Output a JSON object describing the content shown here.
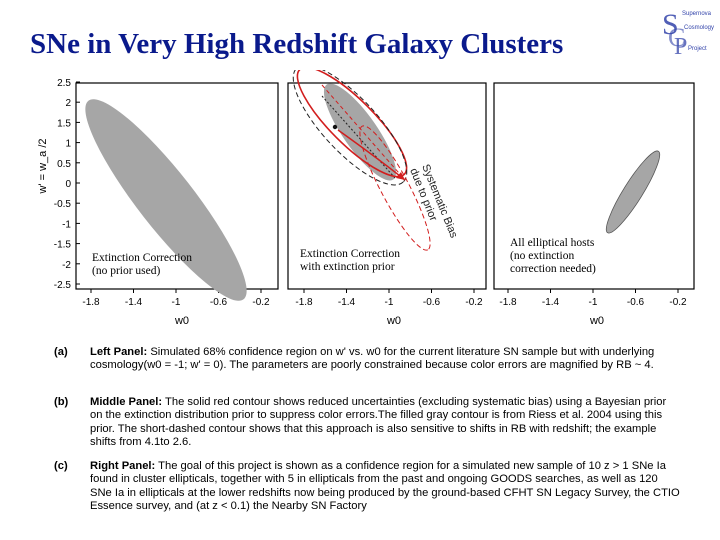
{
  "title": "SNe in Very High Redshift Galaxy Clusters",
  "logo": {
    "letters": "SCP",
    "text_lines": [
      "Supernova",
      "Cosmology",
      "Project"
    ]
  },
  "colors": {
    "title": "#0a1a8c",
    "contour_gray": "#a6a6a6",
    "red": "#d21e1e",
    "logo_blue": "#3344aa"
  },
  "figure": {
    "ylabel": "w' = w_a /2",
    "yticks": [
      "2.5",
      "2",
      "1.5",
      "1",
      "0.5",
      "0",
      "-0.5",
      "-1",
      "-1.5",
      "-2",
      "-2.5"
    ],
    "xticks": [
      "-1.8",
      "-1.4",
      "-1",
      "-0.6",
      "-0.2"
    ],
    "xlabel": "w0",
    "panels": [
      {
        "label_lines": [
          "Extinction Correction",
          "(no prior used)"
        ]
      },
      {
        "label_lines": [
          "Extinction Correction",
          "with extinction prior"
        ],
        "annotation_lines": [
          "Systematic Bias",
          "due to prior"
        ]
      },
      {
        "label_lines": [
          "All elliptical hosts",
          "(no extinction",
          "correction needed)"
        ]
      }
    ]
  },
  "captions": [
    {
      "tag": "(a)",
      "heading": "Left Panel:",
      "text": "Simulated 68% confidence region on w' vs. w0 for the current literature SN sample but with underlying cosmology(w0 = -1; w' = 0). The parameters are poorly constrained because color errors are magnified by RB ~ 4."
    },
    {
      "tag": "(b)",
      "heading": "Middle Panel:",
      "text": "The solid red contour shows reduced uncertainties (excluding systematic bias) using a Bayesian prior on the extinction distribution prior to suppress color errors.The filled gray contour is from Riess et al. 2004 using this prior. The short-dashed contour shows that this approach is also sensitive to shifts in RB with redshift; the example shifts from 4.1to 2.6."
    },
    {
      "tag": "(c)",
      "heading": "Right Panel:",
      "text": "The goal of this project  is shown as a confidence region for a simulated new sample of   10 z  >  1 SNe Ia found in cluster ellipticals, together with 5 in ellipticals from the past and ongoing GOODS searches, as well as 120 SNe Ia in ellipticals at the lower redshifts now being produced by the ground-based CFHT SN Legacy Survey, the CTIO Essence survey, and (at z < 0.1) the Nearby SN Factory"
    }
  ]
}
